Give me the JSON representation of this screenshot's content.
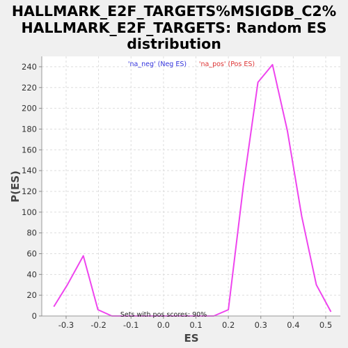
{
  "chart_data": {
    "type": "line",
    "title_lines": [
      "HALLMARK_E2F_TARGETS%MSIGDB_C2%",
      "HALLMARK_E2F_TARGETS: Random ES",
      "distribution"
    ],
    "xlabel": "ES",
    "ylabel": "P(ES)",
    "xlim": [
      -0.375,
      0.545
    ],
    "ylim": [
      0,
      250
    ],
    "xticks": [
      -0.3,
      -0.2,
      -0.1,
      0.0,
      0.1,
      0.2,
      0.3,
      0.4,
      0.5
    ],
    "xtick_labels": [
      "-0.3",
      "-0.2",
      "-0.1",
      "0.0",
      "0.1",
      "0.2",
      "0.3",
      "0.4",
      "0.5"
    ],
    "yticks": [
      0,
      20,
      40,
      60,
      80,
      100,
      120,
      140,
      160,
      180,
      200,
      220,
      240
    ],
    "ytick_labels": [
      "0",
      "20",
      "40",
      "60",
      "80",
      "100",
      "120",
      "140",
      "160",
      "180",
      "200",
      "220",
      "240"
    ],
    "grid": true,
    "legend_placement": "top-center",
    "legend": [
      {
        "label": "'na_neg' (Neg ES)",
        "color": "#3333dd"
      },
      {
        "label": "'na_pos' (Pos ES)",
        "color": "#dd3333"
      }
    ],
    "annotation": "Sets with pos scores: 90%",
    "series": [
      {
        "color": "#ee44ee",
        "x": [
          -0.338,
          -0.296,
          -0.247,
          -0.202,
          -0.159,
          -0.113,
          -0.07,
          -0.025,
          0.02,
          0.065,
          0.11,
          0.155,
          0.2,
          0.246,
          0.291,
          0.336,
          0.382,
          0.426,
          0.471,
          0.516
        ],
        "y": [
          9,
          30,
          58,
          6,
          0,
          0,
          0,
          0,
          0,
          0,
          0,
          0,
          6,
          125,
          225,
          242,
          178,
          96,
          30,
          4
        ]
      }
    ]
  }
}
